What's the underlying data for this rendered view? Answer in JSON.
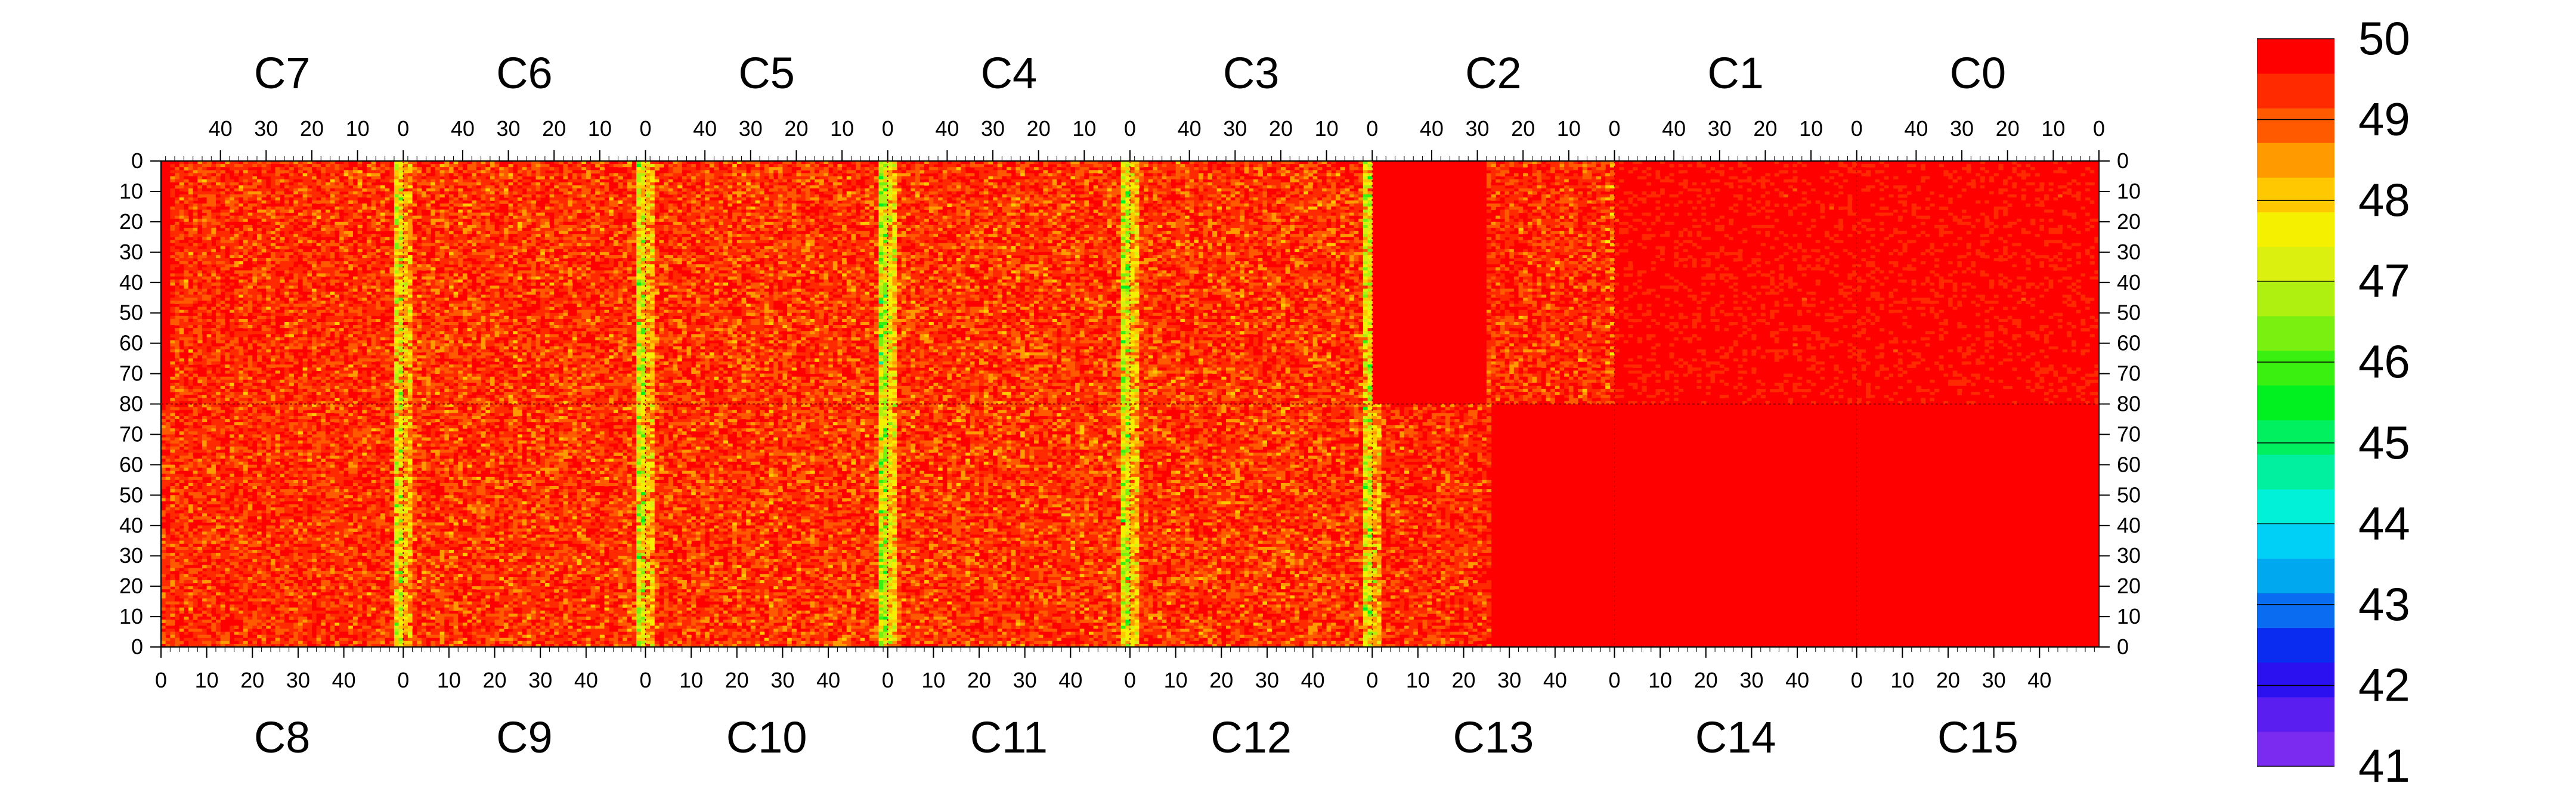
{
  "chart_data": {
    "type": "heatmap",
    "title": "",
    "xlabel": "",
    "ylabel": "",
    "chips_top": [
      "C7",
      "C6",
      "C5",
      "C4",
      "C3",
      "C2",
      "C1",
      "C0"
    ],
    "chips_bottom": [
      "C8",
      "C9",
      "C10",
      "C11",
      "C12",
      "C13",
      "C14",
      "C15"
    ],
    "x_ticks_top": [
      "40",
      "30",
      "20",
      "10",
      "0"
    ],
    "x_ticks_bottom": [
      "0",
      "10",
      "20",
      "30",
      "40"
    ],
    "y_ticks_upper": [
      "0",
      "10",
      "20",
      "30",
      "40",
      "50",
      "60",
      "70",
      "80"
    ],
    "y_ticks_lower": [
      "70",
      "60",
      "50",
      "40",
      "30",
      "20",
      "10",
      "0"
    ],
    "columns_per_chip": 53,
    "rows_per_half": 80,
    "zrange": [
      41,
      50
    ],
    "colorbar_labels": [
      "50",
      "49",
      "48",
      "47",
      "46",
      "45",
      "44",
      "43",
      "42",
      "41"
    ],
    "palette": [
      "#7b2bf0",
      "#5a1ef0",
      "#2b10f0",
      "#0a2cf0",
      "#0a6cf0",
      "#00a8f0",
      "#00d0f5",
      "#00f0d8",
      "#00f0a0",
      "#00f060",
      "#00f020",
      "#3af010",
      "#7af010",
      "#b0f010",
      "#dcf010",
      "#f5f000",
      "#ffc800",
      "#ff9a00",
      "#ff5a00",
      "#ff2a00",
      "#ff0000"
    ],
    "chip_profiles": {
      "C7": {
        "mean": 49.35,
        "spread": 0.55,
        "edge_low": [
          9.0,
          10.5
        ]
      },
      "C6": {
        "mean": 49.3,
        "spread": 0.6,
        "edge_low": [
          0,
          0
        ]
      },
      "C5": {
        "mean": 49.3,
        "spread": 0.6,
        "edge_low": [
          0,
          0
        ]
      },
      "C4": {
        "mean": 49.3,
        "spread": 0.6,
        "edge_low": [
          0,
          0
        ]
      },
      "C3": {
        "mean": 49.3,
        "spread": 0.6,
        "edge_low": [
          0,
          0
        ]
      },
      "C2": {
        "mean": 49.4,
        "spread": 0.55,
        "edge_low": [
          0,
          0
        ]
      },
      "C1": {
        "mean": 49.7,
        "spread": 0.35,
        "edge_low": [
          0,
          0
        ]
      },
      "C0": {
        "mean": 49.7,
        "spread": 0.35,
        "edge_low": [
          0,
          0
        ]
      },
      "C8": {
        "mean": 49.35,
        "spread": 0.55,
        "edge_low": [
          0,
          0
        ]
      },
      "C9": {
        "mean": 49.3,
        "spread": 0.6,
        "edge_low": [
          0,
          0
        ]
      },
      "C10": {
        "mean": 49.3,
        "spread": 0.6,
        "edge_low": [
          0,
          0
        ]
      },
      "C11": {
        "mean": 49.3,
        "spread": 0.6,
        "edge_low": [
          0,
          0
        ]
      },
      "C12": {
        "mean": 49.3,
        "spread": 0.6,
        "edge_low": [
          0,
          0
        ]
      },
      "C13": {
        "mean": 49.4,
        "spread": 0.55,
        "edge_low": [
          0,
          0
        ]
      },
      "C14": {
        "mean": 49.85,
        "spread": 0.2,
        "edge_low": [
          0,
          0
        ]
      },
      "C15": {
        "mean": 49.85,
        "spread": 0.2,
        "edge_low": [
          0,
          0
        ]
      }
    },
    "low_columns": {
      "description_free": true,
      "chip_boundaries_low_mean": [
        47.6,
        47.4,
        47.0,
        47.3,
        47.5,
        49.2,
        49.4
      ],
      "C13_region_above_col_25_mean": 49.98,
      "C14_C15_upper_mean": 49.97
    },
    "grid": false,
    "legend": "colorbar-right"
  }
}
